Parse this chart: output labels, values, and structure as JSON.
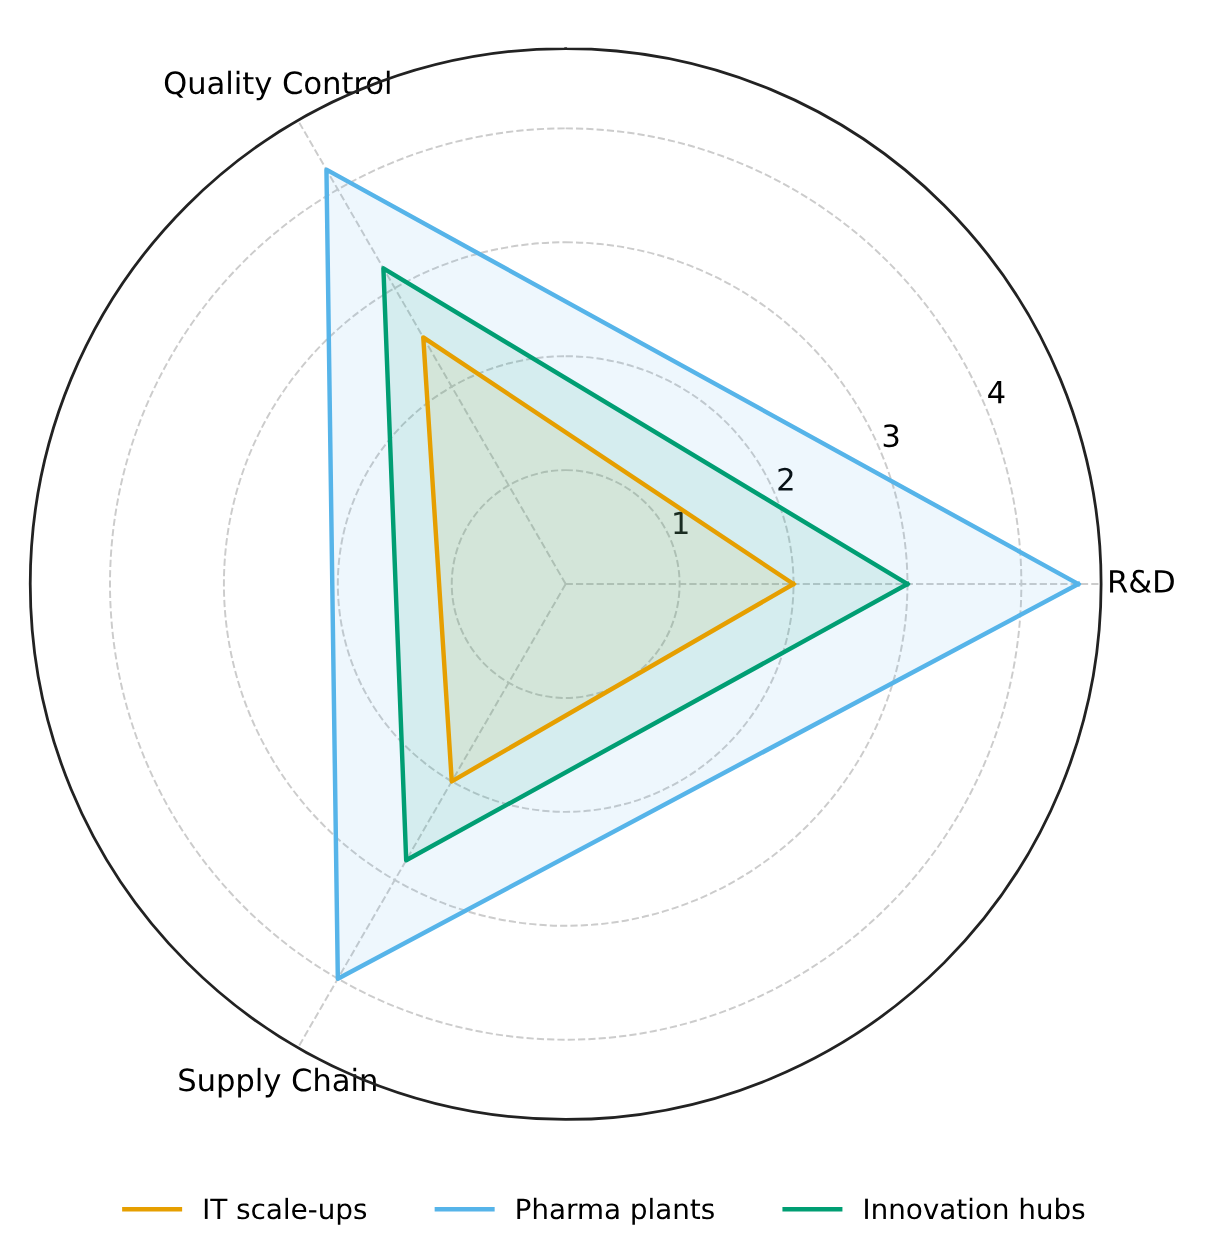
{
  "chart_data": {
    "type": "radar",
    "categories": [
      "R&D",
      "Supply Chain",
      "Quality Control"
    ],
    "ylim": [
      0,
      4.7
    ],
    "yticks": [
      1,
      2,
      3,
      4
    ],
    "grid": true,
    "legend": "bottom",
    "marker": "none",
    "line_style": "solid",
    "series": [
      {
        "name": "IT scale-ups",
        "color": "#e69f00",
        "values": [
          2.0,
          2.0,
          2.5
        ]
      },
      {
        "name": "Pharma plants",
        "color": "#56b4e9",
        "values": [
          4.5,
          4.0,
          4.2
        ]
      },
      {
        "name": "Innovation hubs",
        "color": "#009e73",
        "values": [
          3.0,
          2.8,
          3.2
        ]
      }
    ]
  }
}
